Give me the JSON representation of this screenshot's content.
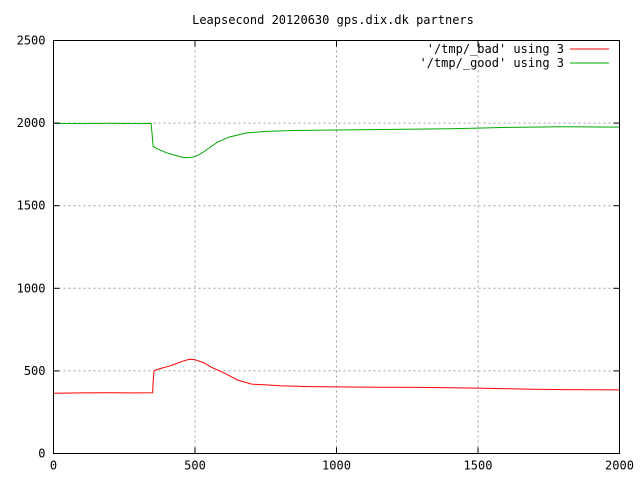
{
  "chart_data": {
    "type": "line",
    "title": "Leapsecond 20120630 gps.dix.dk partners",
    "xlabel": "",
    "ylabel": "",
    "xlim": [
      0,
      2000
    ],
    "ylim": [
      0,
      2500
    ],
    "xticks": [
      0,
      500,
      1000,
      1500,
      2000
    ],
    "yticks": [
      0,
      500,
      1000,
      1500,
      2000,
      2500
    ],
    "grid": true,
    "legend_position": "top-right",
    "series": [
      {
        "name": "'/tmp/_bad' using 3",
        "color": "#ff0000",
        "x": [
          0,
          100,
          200,
          300,
          350,
          352,
          355,
          360,
          380,
          400,
          420,
          450,
          480,
          500,
          530,
          560,
          600,
          650,
          700,
          750,
          800,
          900,
          1000,
          1100,
          1200,
          1300,
          1400,
          1500,
          1600,
          1700,
          1800,
          1900,
          2000
        ],
        "y": [
          365,
          367,
          368,
          367,
          368,
          430,
          500,
          505,
          515,
          525,
          535,
          555,
          570,
          568,
          550,
          520,
          490,
          445,
          420,
          415,
          410,
          405,
          403,
          402,
          401,
          400,
          398,
          396,
          392,
          389,
          387,
          386,
          385
        ]
      },
      {
        "name": "'/tmp/_good' using 3",
        "color": "#00aa00",
        "x": [
          0,
          100,
          200,
          300,
          345,
          348,
          352,
          360,
          380,
          400,
          420,
          450,
          470,
          490,
          510,
          530,
          550,
          580,
          620,
          680,
          750,
          850,
          1000,
          1200,
          1400,
          1500,
          1600,
          1800,
          2000
        ],
        "y": [
          1998,
          1997,
          1999,
          1997,
          1998,
          1940,
          1860,
          1850,
          1835,
          1820,
          1810,
          1795,
          1790,
          1793,
          1805,
          1825,
          1850,
          1885,
          1915,
          1940,
          1950,
          1955,
          1958,
          1962,
          1966,
          1970,
          1974,
          1978,
          1976
        ]
      }
    ]
  }
}
